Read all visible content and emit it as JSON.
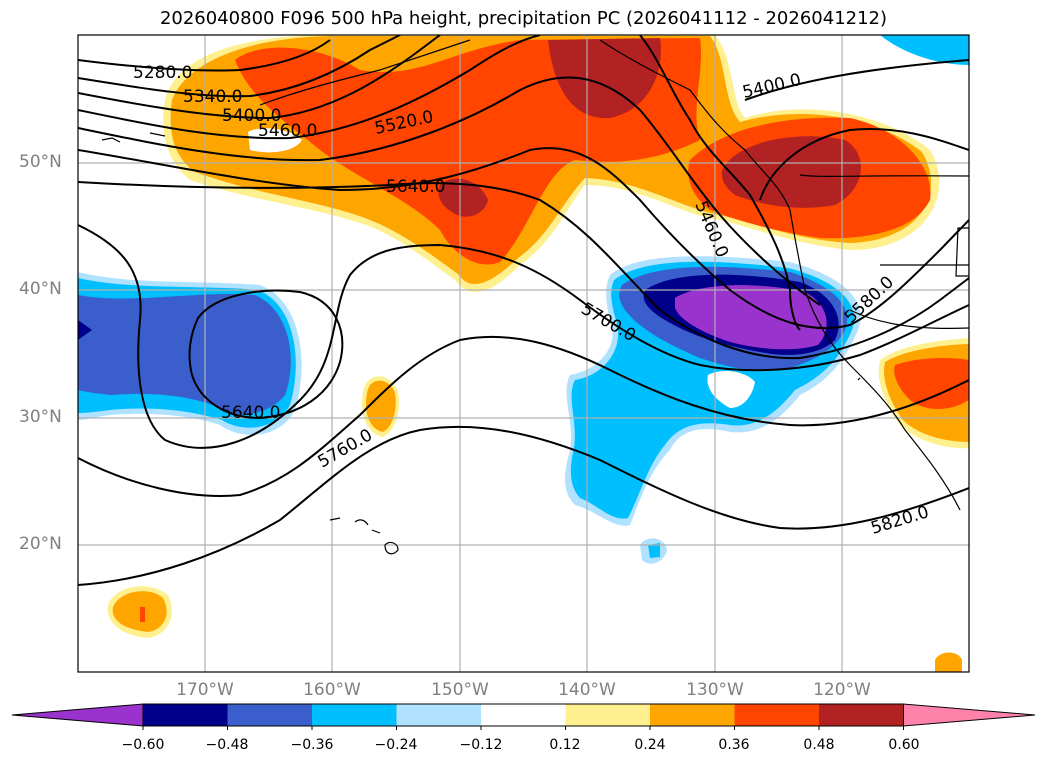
{
  "title": "2026040800 F096 500 hPa height, precipitation PC (2026041112 - 2026041212)",
  "lat_labels": [
    "50°N",
    "40°N",
    "30°N",
    "20°N"
  ],
  "lon_labels": [
    "170°W",
    "160°W",
    "150°W",
    "140°W",
    "130°W",
    "120°W"
  ],
  "contour_labels": [
    "5280.0",
    "5340.0",
    "5400.0",
    "5460.0",
    "5520.0",
    "5640.0",
    "5400.0",
    "5460.0",
    "5580.0",
    "5700.0",
    "5640.0",
    "5760.0",
    "5820.0"
  ],
  "colorbar": {
    "ticks": [
      "−0.60",
      "−0.48",
      "−0.36",
      "−0.24",
      "−0.12",
      "0.12",
      "0.24",
      "0.36",
      "0.48",
      "0.60"
    ],
    "colors": [
      "#9a32cd",
      "#00008b",
      "#3a5fcd",
      "#00bfff",
      "#b0e2ff",
      "#ffffff",
      "#fff08f",
      "#ffa500",
      "#ff4500",
      "#b22222",
      "#ff82ab"
    ]
  }
}
